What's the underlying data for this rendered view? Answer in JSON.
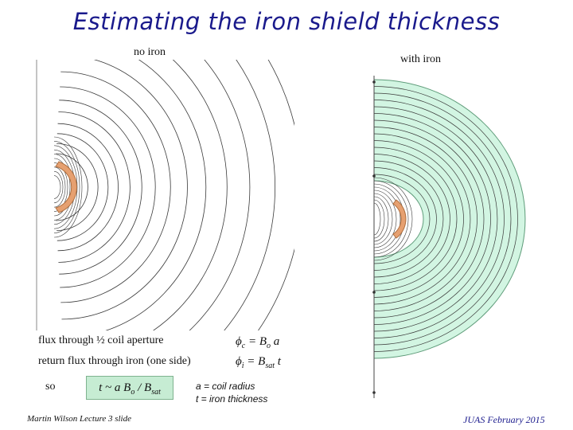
{
  "slide": {
    "title": "Estimating the iron shield thickness",
    "left_label": "no iron",
    "right_label": "with iron",
    "line1_text": "flux through ½ coil aperture",
    "line2_text": "return flux through iron (one side)",
    "so_text": "so",
    "formula1": {
      "lhs": "ϕ",
      "lhs_sub": "c",
      "eq": " = B",
      "b_sub": "o",
      "tail": " a"
    },
    "formula2": {
      "lhs": "ϕ",
      "lhs_sub": "i",
      "eq": " = B",
      "b_sub": "sat",
      "tail": " t"
    },
    "boxed": {
      "pre": "t ~ a B",
      "o_sub": "o",
      "mid": " / B",
      "sat_sub": "sat"
    },
    "note1": "a = coil radius",
    "note2": "t = iron thickness",
    "footer_left": "Martin Wilson Lecture 3 slide",
    "footer_right": "JUAS February 2015"
  },
  "colors": {
    "title": "#1a1a8c",
    "iron": "#d2f5e2",
    "coil": "#e6a070",
    "lines": "#3a3a3a"
  }
}
